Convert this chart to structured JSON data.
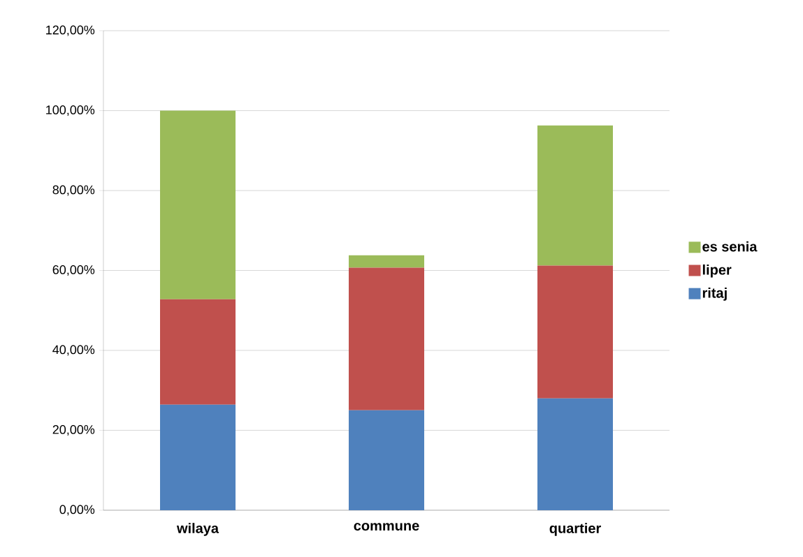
{
  "chart_data": {
    "type": "bar",
    "stacked": true,
    "categories": [
      "wilaya",
      "commune",
      "quartier"
    ],
    "series": [
      {
        "name": "ritaj",
        "color": "#4f81bd",
        "values": [
          26.4,
          25.0,
          28.0
        ]
      },
      {
        "name": "liper",
        "color": "#c0504d",
        "values": [
          26.4,
          35.7,
          33.2
        ]
      },
      {
        "name": "es senia",
        "color": "#9bbb59",
        "values": [
          47.2,
          3.1,
          35.1
        ]
      }
    ],
    "ylim": [
      0,
      120
    ],
    "yticks": [
      {
        "value": 0,
        "label": "0,00%"
      },
      {
        "value": 20,
        "label": "20,00%"
      },
      {
        "value": 40,
        "label": "40,00%"
      },
      {
        "value": 60,
        "label": "60,00%"
      },
      {
        "value": 80,
        "label": "80,00%"
      },
      {
        "value": 100,
        "label": "100,00%"
      },
      {
        "value": 120,
        "label": "120,00%"
      }
    ],
    "grid": "y",
    "legend": "right"
  }
}
